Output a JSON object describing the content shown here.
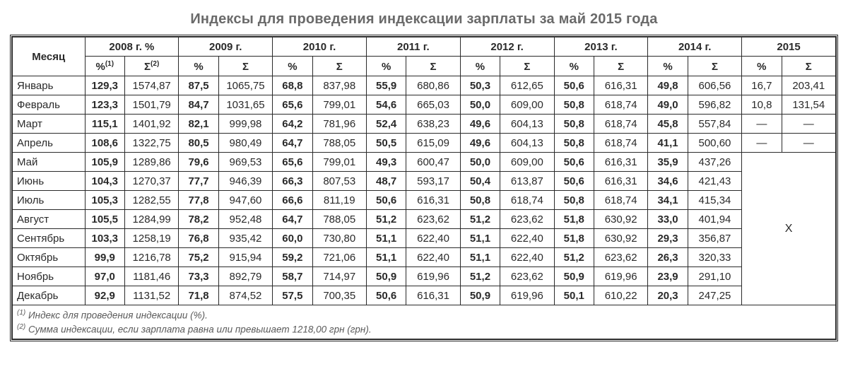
{
  "title": "Индексы для проведения индексации зарплаты за май 2015 года",
  "month_header": "Месяц",
  "years": [
    "2008 г. %",
    "2009 г.",
    "2010 г.",
    "2011 г.",
    "2012 г.",
    "2013 г.",
    "2014 г.",
    "2015"
  ],
  "subhead_pct_first": "%",
  "subhead_sup1": "(1)",
  "subhead_sum_first": "Σ",
  "subhead_sup2": "(2)",
  "subhead_pct": "%",
  "subhead_sum": "Σ",
  "months": [
    "Январь",
    "Февраль",
    "Март",
    "Апрель",
    "Май",
    "Июнь",
    "Июль",
    "Август",
    "Сентябрь",
    "Октябрь",
    "Ноябрь",
    "Декабрь"
  ],
  "data": [
    [
      [
        "129,3",
        "1574,87"
      ],
      [
        "87,5",
        "1065,75"
      ],
      [
        "68,8",
        "837,98"
      ],
      [
        "55,9",
        "680,86"
      ],
      [
        "50,3",
        "612,65"
      ],
      [
        "50,6",
        "616,31"
      ],
      [
        "49,8",
        "606,56"
      ],
      [
        "16,7",
        "203,41"
      ]
    ],
    [
      [
        "123,3",
        "1501,79"
      ],
      [
        "84,7",
        "1031,65"
      ],
      [
        "65,6",
        "799,01"
      ],
      [
        "54,6",
        "665,03"
      ],
      [
        "50,0",
        "609,00"
      ],
      [
        "50,8",
        "618,74"
      ],
      [
        "49,0",
        "596,82"
      ],
      [
        "10,8",
        "131,54"
      ]
    ],
    [
      [
        "115,1",
        "1401,92"
      ],
      [
        "82,1",
        "999,98"
      ],
      [
        "64,2",
        "781,96"
      ],
      [
        "52,4",
        "638,23"
      ],
      [
        "49,6",
        "604,13"
      ],
      [
        "50,8",
        "618,74"
      ],
      [
        "45,8",
        "557,84"
      ],
      [
        "—",
        "—"
      ]
    ],
    [
      [
        "108,6",
        "1322,75"
      ],
      [
        "80,5",
        "980,49"
      ],
      [
        "64,7",
        "788,05"
      ],
      [
        "50,5",
        "615,09"
      ],
      [
        "49,6",
        "604,13"
      ],
      [
        "50,8",
        "618,74"
      ],
      [
        "41,1",
        "500,60"
      ],
      [
        "—",
        "—"
      ]
    ],
    [
      [
        "105,9",
        "1289,86"
      ],
      [
        "79,6",
        "969,53"
      ],
      [
        "65,6",
        "799,01"
      ],
      [
        "49,3",
        "600,47"
      ],
      [
        "50,0",
        "609,00"
      ],
      [
        "50,6",
        "616,31"
      ],
      [
        "35,9",
        "437,26"
      ]
    ],
    [
      [
        "104,3",
        "1270,37"
      ],
      [
        "77,7",
        "946,39"
      ],
      [
        "66,3",
        "807,53"
      ],
      [
        "48,7",
        "593,17"
      ],
      [
        "50,4",
        "613,87"
      ],
      [
        "50,6",
        "616,31"
      ],
      [
        "34,6",
        "421,43"
      ]
    ],
    [
      [
        "105,3",
        "1282,55"
      ],
      [
        "77,8",
        "947,60"
      ],
      [
        "66,6",
        "811,19"
      ],
      [
        "50,6",
        "616,31"
      ],
      [
        "50,8",
        "618,74"
      ],
      [
        "50,8",
        "618,74"
      ],
      [
        "34,1",
        "415,34"
      ]
    ],
    [
      [
        "105,5",
        "1284,99"
      ],
      [
        "78,2",
        "952,48"
      ],
      [
        "64,7",
        "788,05"
      ],
      [
        "51,2",
        "623,62"
      ],
      [
        "51,2",
        "623,62"
      ],
      [
        "51,8",
        "630,92"
      ],
      [
        "33,0",
        "401,94"
      ]
    ],
    [
      [
        "103,3",
        "1258,19"
      ],
      [
        "76,8",
        "935,42"
      ],
      [
        "60,0",
        "730,80"
      ],
      [
        "51,1",
        "622,40"
      ],
      [
        "51,1",
        "622,40"
      ],
      [
        "51,8",
        "630,92"
      ],
      [
        "29,3",
        "356,87"
      ]
    ],
    [
      [
        "99,9",
        "1216,78"
      ],
      [
        "75,2",
        "915,94"
      ],
      [
        "59,2",
        "721,06"
      ],
      [
        "51,1",
        "622,40"
      ],
      [
        "51,1",
        "622,40"
      ],
      [
        "51,2",
        "623,62"
      ],
      [
        "26,3",
        "320,33"
      ]
    ],
    [
      [
        "97,0",
        "1181,46"
      ],
      [
        "73,3",
        "892,79"
      ],
      [
        "58,7",
        "714,97"
      ],
      [
        "50,9",
        "619,96"
      ],
      [
        "51,2",
        "623,62"
      ],
      [
        "50,9",
        "619,96"
      ],
      [
        "23,9",
        "291,10"
      ]
    ],
    [
      [
        "92,9",
        "1131,52"
      ],
      [
        "71,8",
        "874,52"
      ],
      [
        "57,5",
        "700,35"
      ],
      [
        "50,6",
        "616,31"
      ],
      [
        "50,9",
        "619,96"
      ],
      [
        "50,1",
        "610,22"
      ],
      [
        "20,3",
        "247,25"
      ]
    ]
  ],
  "merged_x": "Х",
  "foot1_pre": "(1)",
  "foot1": " Индекс для проведения индексации (%).",
  "foot2_pre": "(2)",
  "foot2": " Сумма индексации, если зарплата равна или превышает 1218,00 грн (грн).",
  "colors": {
    "title": "#6a6a6a",
    "border": "#2a2a2a",
    "text": "#2a2a2a",
    "footnote": "#5a5a5a",
    "background": "#ffffff"
  }
}
